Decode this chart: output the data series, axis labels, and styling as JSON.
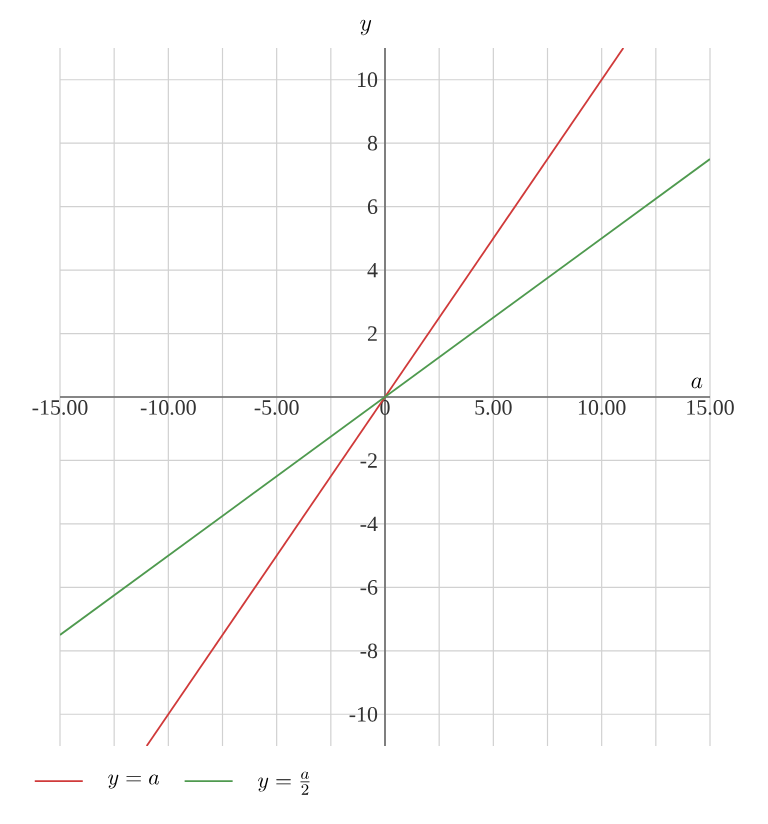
{
  "chart_data": {
    "type": "line",
    "xlabel": "a",
    "ylabel": "y",
    "xlim": [
      -15,
      15
    ],
    "ylim": [
      -11,
      11
    ],
    "xticks": [
      {
        "value": -15,
        "label": "-15.00"
      },
      {
        "value": -12.5,
        "label": null
      },
      {
        "value": -10,
        "label": "-10.00"
      },
      {
        "value": -7.5,
        "label": null
      },
      {
        "value": -5,
        "label": "-5.00"
      },
      {
        "value": -2.5,
        "label": null
      },
      0,
      {
        "value": 2.5,
        "label": null
      },
      {
        "value": 5,
        "label": "5.00"
      },
      {
        "value": 7.5,
        "label": null
      },
      {
        "value": 10,
        "label": "10.00"
      },
      {
        "value": 12.5,
        "label": null
      },
      {
        "value": 15,
        "label": "15.00"
      }
    ],
    "yticks": [
      -10,
      -8,
      -6,
      -4,
      -2,
      {
        "value": 0,
        "label": null
      },
      2,
      4,
      6,
      8,
      10
    ],
    "grid": true,
    "legend": "bottom",
    "series": [
      {
        "name": "y=a",
        "color": "#d03a3a",
        "x": [
          -11,
          11
        ],
        "values": [
          -11,
          11
        ]
      },
      {
        "name": "y=\\frac{a}{2}",
        "color": "#4f9a4f",
        "x": [
          -15,
          15
        ],
        "values": [
          -7.5,
          7.5
        ]
      }
    ]
  }
}
